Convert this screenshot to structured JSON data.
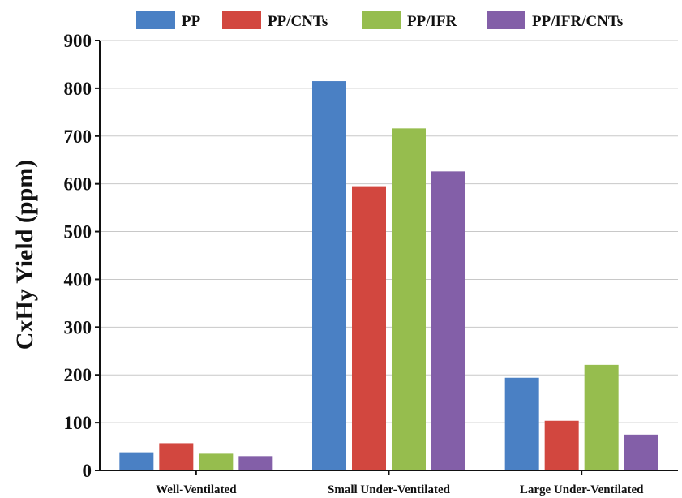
{
  "chart_data": {
    "type": "bar",
    "title": "",
    "xlabel": "",
    "ylabel": "CxHy Yield (ppm)",
    "ylim": [
      0,
      900
    ],
    "yticks": [
      0,
      100,
      200,
      300,
      400,
      500,
      600,
      700,
      800,
      900
    ],
    "grid": true,
    "legend_position": "top",
    "categories": [
      "Well-Ventilated",
      "Small Under-Ventilated",
      "Large Under-Ventilated"
    ],
    "series": [
      {
        "name": "PP",
        "color": "#4a80c4",
        "values": [
          38,
          815,
          194
        ]
      },
      {
        "name": "PP/CNTs",
        "color": "#d2473f",
        "values": [
          57,
          595,
          104
        ]
      },
      {
        "name": "PP/IFR",
        "color": "#96bd4e",
        "values": [
          35,
          716,
          221
        ]
      },
      {
        "name": "PP/IFR/CNTs",
        "color": "#835fa8",
        "values": [
          30,
          626,
          75
        ]
      }
    ]
  }
}
